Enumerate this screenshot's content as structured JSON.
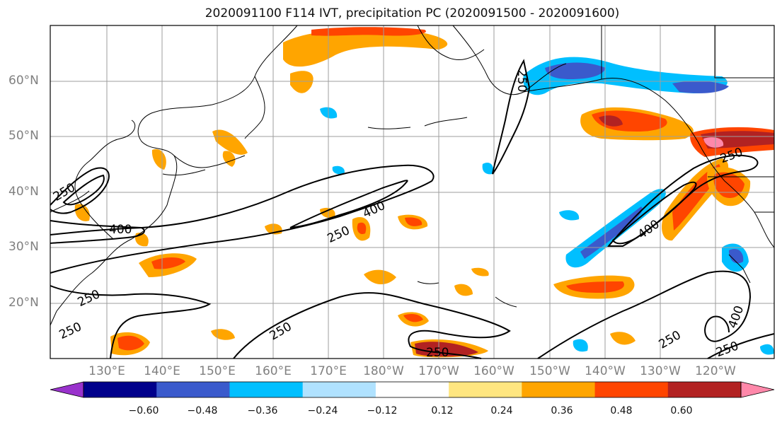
{
  "title": "2020091100 F114 IVT, precipitation PC (2020091500 - 2020091600)",
  "map": {
    "lat_labels": [
      "60°N",
      "50°N",
      "40°N",
      "30°N",
      "20°N"
    ],
    "lon_labels": [
      "130°E",
      "140°E",
      "150°E",
      "160°E",
      "170°E",
      "180°W",
      "170°W",
      "160°W",
      "150°W",
      "140°W",
      "130°W",
      "120°W"
    ],
    "contour_labels": [
      "250",
      "250",
      "250",
      "250",
      "250",
      "250",
      "250",
      "250",
      "250",
      "400",
      "400",
      "400",
      "400",
      "250"
    ]
  },
  "colorbar": {
    "ticks": [
      "−0.60",
      "−0.48",
      "−0.36",
      "−0.24",
      "−0.12",
      "0.12",
      "0.24",
      "0.36",
      "0.48",
      "0.60"
    ],
    "colors": [
      "#9932cc",
      "#00008b",
      "#3a5acc",
      "#00bfff",
      "#b0e2ff",
      "#ffffff",
      "#ffe680",
      "#ffa500",
      "#ff4500",
      "#b22222",
      "#ff88aa"
    ]
  }
}
